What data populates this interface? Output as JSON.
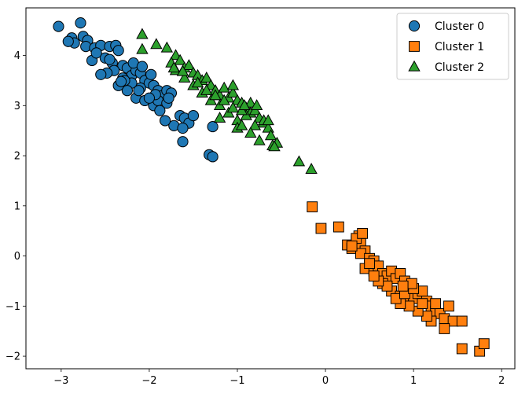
{
  "chart_data": {
    "type": "scatter",
    "xlim": [
      -3.4,
      2.15
    ],
    "ylim": [
      -2.25,
      4.95
    ],
    "x_ticks": [
      -3,
      -2,
      -1,
      0,
      1,
      2
    ],
    "x_tick_labels": [
      "−3",
      "−2",
      "−1",
      "0",
      "1",
      "2"
    ],
    "y_ticks": [
      -2,
      -1,
      0,
      1,
      2,
      3,
      4
    ],
    "y_tick_labels": [
      "−2",
      "−1",
      "0",
      "1",
      "2",
      "3",
      "4"
    ],
    "grid": false,
    "legend_position": "top-right",
    "series": [
      {
        "name": "Cluster 0",
        "marker": "circle",
        "color": "#1f77b4",
        "points": [
          [
            -3.03,
            4.58
          ],
          [
            -2.78,
            4.65
          ],
          [
            -2.88,
            4.35
          ],
          [
            -2.75,
            4.38
          ],
          [
            -2.85,
            4.25
          ],
          [
            -2.7,
            4.3
          ],
          [
            -2.72,
            4.18
          ],
          [
            -2.62,
            4.15
          ],
          [
            -2.55,
            4.2
          ],
          [
            -2.45,
            4.18
          ],
          [
            -2.38,
            4.2
          ],
          [
            -2.65,
            3.9
          ],
          [
            -2.5,
            3.95
          ],
          [
            -2.42,
            3.85
          ],
          [
            -2.35,
            4.1
          ],
          [
            -2.3,
            3.8
          ],
          [
            -2.25,
            3.75
          ],
          [
            -2.4,
            3.7
          ],
          [
            -2.2,
            3.6
          ],
          [
            -2.15,
            3.7
          ],
          [
            -2.1,
            3.65
          ],
          [
            -2.3,
            3.55
          ],
          [
            -2.05,
            3.5
          ],
          [
            -2.0,
            3.45
          ],
          [
            -1.95,
            3.4
          ],
          [
            -1.9,
            3.3
          ],
          [
            -2.1,
            3.35
          ],
          [
            -2.2,
            3.45
          ],
          [
            -1.85,
            3.2
          ],
          [
            -1.8,
            3.3
          ],
          [
            -1.75,
            3.25
          ],
          [
            -2.15,
            3.15
          ],
          [
            -2.05,
            3.1
          ],
          [
            -1.95,
            3.0
          ],
          [
            -1.9,
            3.1
          ],
          [
            -1.8,
            3.05
          ],
          [
            -1.78,
            3.15
          ],
          [
            -2.25,
            3.3
          ],
          [
            -2.35,
            3.4
          ],
          [
            -2.18,
            3.85
          ],
          [
            -2.08,
            3.78
          ],
          [
            -1.98,
            3.62
          ],
          [
            -2.28,
            3.5
          ],
          [
            -2.48,
            3.65
          ],
          [
            -2.12,
            3.3
          ],
          [
            -1.88,
            2.9
          ],
          [
            -1.65,
            2.8
          ],
          [
            -1.6,
            2.75
          ],
          [
            -1.55,
            2.65
          ],
          [
            -1.72,
            2.6
          ],
          [
            -1.82,
            2.7
          ],
          [
            -1.5,
            2.8
          ],
          [
            -1.62,
            2.55
          ],
          [
            -1.28,
            2.58
          ],
          [
            -1.62,
            2.28
          ],
          [
            -1.32,
            2.02
          ],
          [
            -1.28,
            1.98
          ],
          [
            -2.92,
            4.28
          ],
          [
            -2.55,
            3.62
          ],
          [
            -2.32,
            3.48
          ],
          [
            -1.93,
            3.22
          ],
          [
            -2.0,
            3.15
          ],
          [
            -2.45,
            3.92
          ],
          [
            -2.6,
            4.05
          ]
        ]
      },
      {
        "name": "Cluster 1",
        "marker": "square",
        "color": "#ff7f0e",
        "points": [
          [
            -0.15,
            0.98
          ],
          [
            -0.05,
            0.55
          ],
          [
            0.15,
            0.58
          ],
          [
            0.25,
            0.22
          ],
          [
            0.3,
            0.15
          ],
          [
            0.35,
            0.3
          ],
          [
            0.38,
            0.4
          ],
          [
            0.4,
            0.25
          ],
          [
            0.45,
            0.1
          ],
          [
            0.4,
            0.05
          ],
          [
            0.5,
            -0.05
          ],
          [
            0.55,
            -0.1
          ],
          [
            0.45,
            -0.25
          ],
          [
            0.55,
            -0.3
          ],
          [
            0.6,
            -0.2
          ],
          [
            0.65,
            -0.35
          ],
          [
            0.7,
            -0.4
          ],
          [
            0.75,
            -0.3
          ],
          [
            0.8,
            -0.45
          ],
          [
            0.85,
            -0.35
          ],
          [
            0.9,
            -0.5
          ],
          [
            0.95,
            -0.6
          ],
          [
            0.65,
            -0.55
          ],
          [
            0.75,
            -0.7
          ],
          [
            0.85,
            -0.8
          ],
          [
            0.95,
            -0.9
          ],
          [
            1.0,
            -0.85
          ],
          [
            1.05,
            -0.75
          ],
          [
            1.1,
            -0.7
          ],
          [
            1.15,
            -0.9
          ],
          [
            1.2,
            -1.0
          ],
          [
            1.25,
            -1.1
          ],
          [
            1.3,
            -1.15
          ],
          [
            1.35,
            -1.25
          ],
          [
            1.4,
            -1.0
          ],
          [
            1.45,
            -1.3
          ],
          [
            1.55,
            -1.3
          ],
          [
            1.2,
            -1.3
          ],
          [
            1.15,
            -1.2
          ],
          [
            1.05,
            -1.1
          ],
          [
            0.95,
            -1.0
          ],
          [
            0.85,
            -0.95
          ],
          [
            0.8,
            -0.85
          ],
          [
            0.9,
            -0.75
          ],
          [
            1.0,
            -0.65
          ],
          [
            0.7,
            -0.6
          ],
          [
            0.6,
            -0.5
          ],
          [
            0.55,
            -0.4
          ],
          [
            0.5,
            -0.15
          ],
          [
            0.35,
            0.35
          ],
          [
            0.42,
            0.45
          ],
          [
            0.3,
            0.2
          ],
          [
            1.35,
            -1.45
          ],
          [
            1.55,
            -1.85
          ],
          [
            1.75,
            -1.9
          ],
          [
            1.8,
            -1.75
          ],
          [
            1.1,
            -0.95
          ],
          [
            0.98,
            -0.55
          ],
          [
            0.88,
            -0.6
          ],
          [
            1.25,
            -0.95
          ]
        ]
      },
      {
        "name": "Cluster 2",
        "marker": "triangle",
        "color": "#2ca02c",
        "points": [
          [
            -2.08,
            4.42
          ],
          [
            -2.08,
            4.12
          ],
          [
            -1.92,
            4.22
          ],
          [
            -1.8,
            4.15
          ],
          [
            -1.7,
            4.0
          ],
          [
            -1.75,
            3.85
          ],
          [
            -1.65,
            3.9
          ],
          [
            -1.6,
            3.75
          ],
          [
            -1.55,
            3.8
          ],
          [
            -1.5,
            3.65
          ],
          [
            -1.45,
            3.6
          ],
          [
            -1.4,
            3.5
          ],
          [
            -1.35,
            3.55
          ],
          [
            -1.3,
            3.4
          ],
          [
            -1.25,
            3.3
          ],
          [
            -1.2,
            3.2
          ],
          [
            -1.15,
            3.35
          ],
          [
            -1.1,
            3.15
          ],
          [
            -1.05,
            3.25
          ],
          [
            -1.0,
            3.1
          ],
          [
            -0.95,
            3.05
          ],
          [
            -0.9,
            2.95
          ],
          [
            -0.85,
            2.85
          ],
          [
            -0.8,
            2.9
          ],
          [
            -0.75,
            2.75
          ],
          [
            -0.7,
            2.65
          ],
          [
            -0.65,
            2.55
          ],
          [
            -0.6,
            2.2
          ],
          [
            -0.62,
            2.4
          ],
          [
            -0.55,
            2.25
          ],
          [
            -0.7,
            2.7
          ],
          [
            -0.8,
            2.6
          ],
          [
            -0.9,
            2.8
          ],
          [
            -1.0,
            2.7
          ],
          [
            -1.1,
            2.85
          ],
          [
            -1.2,
            3.0
          ],
          [
            -1.3,
            3.1
          ],
          [
            -1.4,
            3.25
          ],
          [
            -1.5,
            3.4
          ],
          [
            -1.6,
            3.55
          ],
          [
            -1.7,
            3.7
          ],
          [
            -1.2,
            2.75
          ],
          [
            -1.0,
            2.55
          ],
          [
            -0.85,
            2.45
          ],
          [
            -0.95,
            2.6
          ],
          [
            -1.05,
            3.4
          ],
          [
            -0.85,
            3.05
          ],
          [
            -0.78,
            3.0
          ],
          [
            -0.65,
            2.7
          ],
          [
            -1.15,
            3.1
          ],
          [
            -1.25,
            3.2
          ],
          [
            -0.95,
            2.9
          ],
          [
            -1.05,
            2.95
          ],
          [
            -0.3,
            1.88
          ],
          [
            -0.16,
            1.73
          ],
          [
            -1.72,
            3.75
          ],
          [
            -1.62,
            3.68
          ],
          [
            -1.45,
            3.45
          ],
          [
            -1.35,
            3.3
          ],
          [
            -0.92,
            3.0
          ],
          [
            -0.75,
            2.3
          ],
          [
            -0.58,
            2.18
          ]
        ]
      }
    ]
  }
}
